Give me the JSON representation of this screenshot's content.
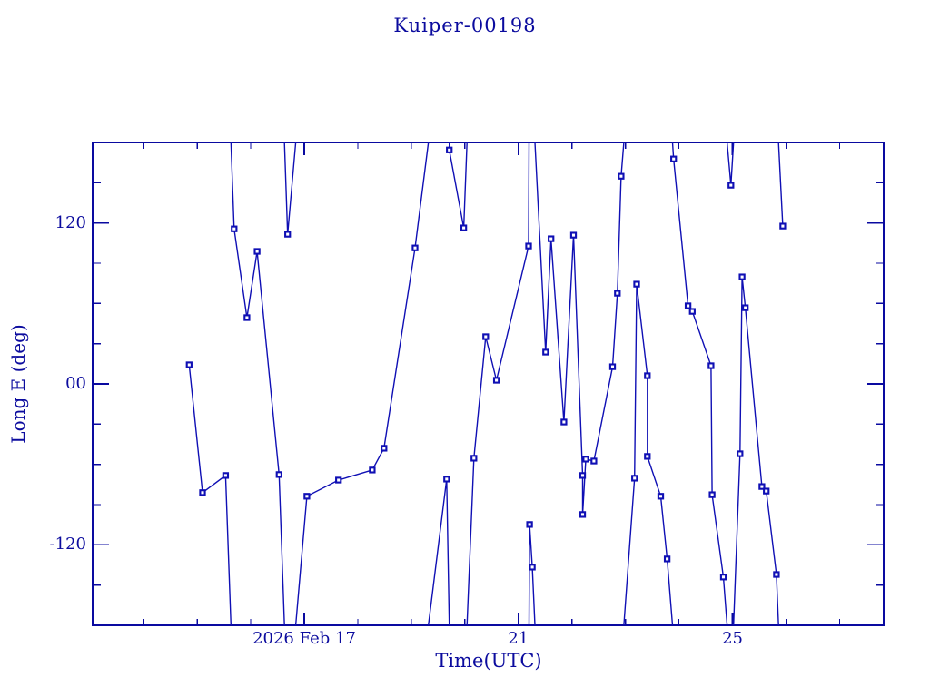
{
  "figure": {
    "title": "Kuiper-00198",
    "x_axis_label": "Time(UTC)",
    "y_axis_label": "Long E (deg)"
  },
  "colors": {
    "background": "#ffffff",
    "text": "#0b0b9e",
    "axis": "#0a0aa0",
    "line": "#0f0fb4",
    "marker": "#0f0fb4",
    "marker_center": "#ffffff"
  },
  "chart_data": {
    "type": "line",
    "title": "Kuiper-00198",
    "xlabel": "Time(UTC)",
    "ylabel": "Long E (deg)",
    "x_unit": "day of 2026 Feb (UTC)",
    "xlim": [
      13.05,
      27.82
    ],
    "ylim": [
      -180,
      180
    ],
    "grid": false,
    "legend": false,
    "marker_shape": "open-square",
    "x_major_ticks": [
      {
        "day": 17,
        "label": "2026 Feb 17"
      },
      {
        "day": 21,
        "label": "21"
      },
      {
        "day": 25,
        "label": "25"
      }
    ],
    "x_minor_tick_days": [
      14,
      15,
      16,
      18,
      19,
      20,
      22,
      23,
      24,
      26,
      27
    ],
    "y_major_ticks": [
      {
        "value": 120,
        "label": "120"
      },
      {
        "value": 0,
        "label": "00"
      },
      {
        "value": -120,
        "label": "-120"
      }
    ],
    "y_minor_tick_values": [
      -150,
      -90,
      -60,
      -30,
      30,
      60,
      90,
      150
    ],
    "points": [
      [
        14.85,
        14.2
      ],
      [
        15.1,
        -81.1
      ],
      [
        15.53,
        -68.3
      ],
      [
        15.69,
        115.6
      ],
      [
        15.93,
        49.4
      ],
      [
        16.12,
        98.8
      ],
      [
        16.53,
        -67.6
      ],
      [
        16.69,
        111.6
      ],
      [
        17.05,
        -83.8
      ],
      [
        17.64,
        -71.7
      ],
      [
        18.27,
        -64.2
      ],
      [
        18.49,
        -48.0
      ],
      [
        19.07,
        101.4
      ],
      [
        19.66,
        -71.0
      ],
      [
        19.71,
        174.4
      ],
      [
        19.98,
        116.3
      ],
      [
        20.17,
        -55.4
      ],
      [
        20.39,
        35.2
      ],
      [
        20.59,
        2.7
      ],
      [
        21.19,
        102.8
      ],
      [
        21.21,
        -104.8
      ],
      [
        21.26,
        -136.6
      ],
      [
        21.51,
        23.7
      ],
      [
        21.61,
        108.2
      ],
      [
        21.85,
        -28.4
      ],
      [
        22.03,
        110.9
      ],
      [
        22.2,
        -68.3
      ],
      [
        22.2,
        -97.4
      ],
      [
        22.26,
        -56.1
      ],
      [
        22.41,
        -57.5
      ],
      [
        22.76,
        12.8
      ],
      [
        22.85,
        67.6
      ],
      [
        22.92,
        154.8
      ],
      [
        23.17,
        -70.3
      ],
      [
        23.21,
        74.4
      ],
      [
        23.41,
        6.1
      ],
      [
        23.41,
        -54.1
      ],
      [
        23.66,
        -83.8
      ],
      [
        23.78,
        -130.5
      ],
      [
        23.9,
        167.7
      ],
      [
        24.17,
        58.2
      ],
      [
        24.25,
        54.1
      ],
      [
        24.6,
        13.5
      ],
      [
        24.62,
        -82.6
      ],
      [
        24.83,
        -144.0
      ],
      [
        24.97,
        148.1
      ],
      [
        25.14,
        -52.1
      ],
      [
        25.18,
        79.8
      ],
      [
        25.24,
        56.8
      ],
      [
        25.55,
        -76.5
      ],
      [
        25.63,
        -79.9
      ],
      [
        25.82,
        -142.1
      ],
      [
        25.94,
        117.7
      ]
    ],
    "segments": [
      [
        [
          14.85,
          14.2
        ],
        [
          15.1,
          -81.1
        ],
        [
          15.53,
          -68.3
        ],
        [
          15.63,
          -180
        ]
      ],
      [
        [
          15.63,
          180
        ],
        [
          15.69,
          115.6
        ],
        [
          15.93,
          49.4
        ],
        [
          16.12,
          98.8
        ],
        [
          16.53,
          -67.6
        ],
        [
          16.63,
          -180
        ]
      ],
      [
        [
          16.63,
          180
        ],
        [
          16.69,
          111.6
        ],
        [
          16.84,
          180
        ]
      ],
      [
        [
          16.84,
          -180
        ],
        [
          17.05,
          -83.8
        ],
        [
          17.64,
          -71.7
        ],
        [
          18.27,
          -64.2
        ],
        [
          18.49,
          -48.0
        ],
        [
          19.07,
          101.4
        ],
        [
          19.32,
          180
        ]
      ],
      [
        [
          19.32,
          -180
        ],
        [
          19.66,
          -71.0
        ],
        [
          19.71,
          -180
        ]
      ],
      [
        [
          19.71,
          180
        ],
        [
          19.71,
          174.4
        ],
        [
          19.98,
          116.3
        ],
        [
          20.04,
          180
        ]
      ],
      [
        [
          20.04,
          -180
        ],
        [
          20.17,
          -55.4
        ],
        [
          20.39,
          35.2
        ],
        [
          20.59,
          2.7
        ],
        [
          21.19,
          102.8
        ],
        [
          21.2,
          180
        ]
      ],
      [
        [
          21.2,
          -180
        ],
        [
          21.21,
          -104.8
        ],
        [
          21.26,
          -136.6
        ],
        [
          21.31,
          -180
        ]
      ],
      [
        [
          21.31,
          180
        ],
        [
          21.51,
          23.7
        ],
        [
          21.61,
          108.2
        ],
        [
          21.85,
          -28.4
        ],
        [
          22.03,
          110.9
        ],
        [
          22.2,
          -68.3
        ],
        [
          22.2,
          -97.4
        ],
        [
          22.26,
          -56.1
        ],
        [
          22.41,
          -57.5
        ],
        [
          22.76,
          12.8
        ],
        [
          22.85,
          67.6
        ],
        [
          22.92,
          154.8
        ],
        [
          22.97,
          180
        ]
      ],
      [
        [
          22.97,
          -180
        ],
        [
          23.17,
          -70.3
        ],
        [
          23.21,
          74.4
        ],
        [
          23.41,
          6.1
        ],
        [
          23.41,
          -54.1
        ],
        [
          23.66,
          -83.8
        ],
        [
          23.78,
          -130.5
        ],
        [
          23.88,
          -180
        ]
      ],
      [
        [
          23.88,
          180
        ],
        [
          23.9,
          167.7
        ],
        [
          24.17,
          58.2
        ],
        [
          24.25,
          54.1
        ],
        [
          24.6,
          13.5
        ],
        [
          24.62,
          -82.6
        ],
        [
          24.83,
          -144.0
        ],
        [
          24.9,
          -180
        ]
      ],
      [
        [
          24.9,
          180
        ],
        [
          24.97,
          148.1
        ],
        [
          25.02,
          180
        ]
      ],
      [
        [
          25.02,
          -180
        ],
        [
          25.14,
          -52.1
        ],
        [
          25.18,
          79.8
        ],
        [
          25.24,
          56.8
        ],
        [
          25.55,
          -76.5
        ],
        [
          25.63,
          -79.9
        ],
        [
          25.82,
          -142.1
        ],
        [
          25.86,
          -180
        ]
      ],
      [
        [
          25.86,
          180
        ],
        [
          25.94,
          117.7
        ]
      ]
    ]
  }
}
